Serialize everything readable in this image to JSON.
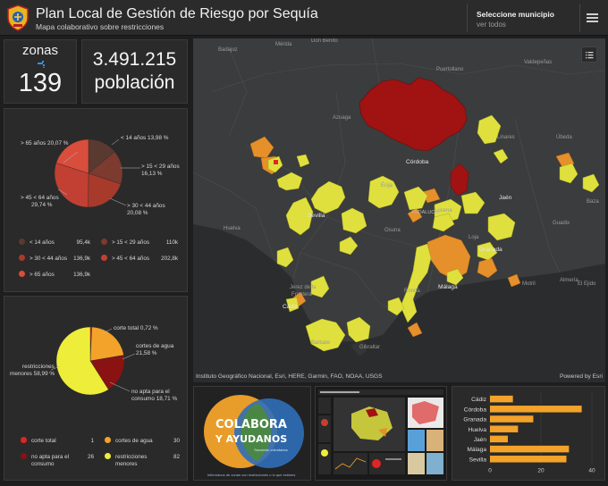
{
  "header": {
    "title": "Plan Local de Gestión de Riesgo por Sequía",
    "subtitle": "Mapa colaborativo sobre restricciones",
    "select_label": "Seleccione municipio",
    "select_value": "ver todos"
  },
  "indicators": {
    "zonas_label": "zonas",
    "zonas_value": "139",
    "poblacion_value": "3.491.215",
    "poblacion_label": "población"
  },
  "age_chart": {
    "type": "pie",
    "slices": [
      {
        "label": "< 14 años 13,98 %",
        "value": 13.98,
        "color": "#5a3a30"
      },
      {
        "label": "> 15 < 29 años 16,13 %",
        "value": 16.13,
        "color": "#7d3a2e"
      },
      {
        "label": "> 30 < 44 años 20,08 %",
        "value": 20.08,
        "color": "#a83a2c"
      },
      {
        "label": "> 45 < 64 años 29,74 %",
        "value": 29.74,
        "color": "#c24033"
      },
      {
        "label": "> 65 años 20,07 %",
        "value": 20.07,
        "color": "#d94d3c"
      }
    ],
    "text": {
      "l65a": "> 65 años 20,07 %",
      "l14a": "< 14 años 13,98 %",
      "l15a": "> 15 < 29 años",
      "l15b": "16,13 %",
      "l45a": "> 45 < 64 años",
      "l45b": "29,74 %",
      "l30a": "> 30 < 44 años",
      "l30b": "20,08 %"
    }
  },
  "age_legend": [
    {
      "label": "< 14 años",
      "value": "95,4k",
      "color": "#5a3a30"
    },
    {
      "label": "> 15 < 29 años",
      "value": "110k",
      "color": "#7d3a2e"
    },
    {
      "label": "> 30 < 44 años",
      "value": "136,9k",
      "color": "#a83a2c"
    },
    {
      "label": "> 45 < 64 años",
      "value": "202,8k",
      "color": "#c24033"
    },
    {
      "label": "> 65 años",
      "value": "136,9k",
      "color": "#d94d3c"
    }
  ],
  "restriction_chart": {
    "type": "pie",
    "slices": [
      {
        "label": "corte total 0,72 %",
        "value": 0.72,
        "color": "#e02525"
      },
      {
        "label": "cortes de agua 21,58 %",
        "value": 21.58,
        "color": "#f3a32a"
      },
      {
        "label": "no apta para el consumo 18,71 %",
        "value": 18.71,
        "color": "#8a1212"
      },
      {
        "label": "restricciones menores 58,99 %",
        "value": 58.99,
        "color": "#eeee3a"
      }
    ],
    "text": {
      "ct": "corte total 0,72 %",
      "ca1": "cortes de agua",
      "ca2": "21,58 %",
      "na1": "no apta para el",
      "na2": "consumo 18,71 %",
      "rm1": "restricciones",
      "rm2": "menores 58,99 %"
    }
  },
  "restriction_legend": {
    "corte_total": {
      "label": "corte total",
      "value": "1",
      "color": "#e02525"
    },
    "cortes_agua": {
      "label": "cortes de agua",
      "value": "30",
      "color": "#f3a32a"
    },
    "no_apta_1": "no apta para el",
    "no_apta_2": "consumo",
    "no_apta_value": "26",
    "no_apta_color": "#8a1212",
    "restr_1": "restricciones",
    "restr_2": "menores",
    "restr_value": "82",
    "restr_color": "#eeee3a"
  },
  "map": {
    "places": {
      "badajoz": "Badajoz",
      "merida": "Mérida",
      "don_benito": "Don Benito",
      "puertollano": "Puertollano",
      "valdepenas": "Valdepeñas",
      "azuaga": "Azuaga",
      "linares": "Linares",
      "cordoba": "Córdoba",
      "jaen": "Jaén",
      "ubeda": "Úbeda",
      "baza": "Baza",
      "sevilla": "Sevilla",
      "huelva": "Huelva",
      "andalucia": "ANDALUCÍA",
      "osuna": "Osuna",
      "loja": "Loja",
      "guadix": "Guadix",
      "granada": "Granada",
      "jerez": "Jerez de la",
      "frontera": "Frontera",
      "cadiz": "Cádiz",
      "malaga": "Málaga",
      "motril": "Motril",
      "almeria": "Almería",
      "el_ejido": "El Ejido",
      "barbate": "Barbate",
      "gibraltar": "Gibraltar",
      "ecija": "Écija",
      "lucena": "Lucena",
      "ronda": "Ronda"
    },
    "attribution": "Instituto Geográfico Nacional, Esri, HERE, Garmin, FAO, NOAA, USGS",
    "powered": "Powered by Esri",
    "legend_colors": {
      "corte_total": "#e02525",
      "cortes_de_agua": "#f3a32a",
      "no_apta": "#8a1212",
      "restricciones_menores": "#eeee3a"
    }
  },
  "promo": {
    "line1": "COLABORA",
    "line2": "Y AYUDANOS",
    "tagline": "Sumando voluntarios",
    "caption": "Infórmanos de zonas con restricciones o lo que estimes"
  },
  "bar_chart": {
    "type": "bar",
    "categories": [
      "Cádiz",
      "Córdoba",
      "Granada",
      "Huelva",
      "Jaén",
      "Málaga",
      "Sevilla"
    ],
    "values": [
      9,
      36,
      17,
      11,
      7,
      31,
      30
    ],
    "xlim": [
      0,
      40
    ],
    "ticks": [
      "0",
      "20",
      "40"
    ],
    "color": "#f3a32a"
  }
}
